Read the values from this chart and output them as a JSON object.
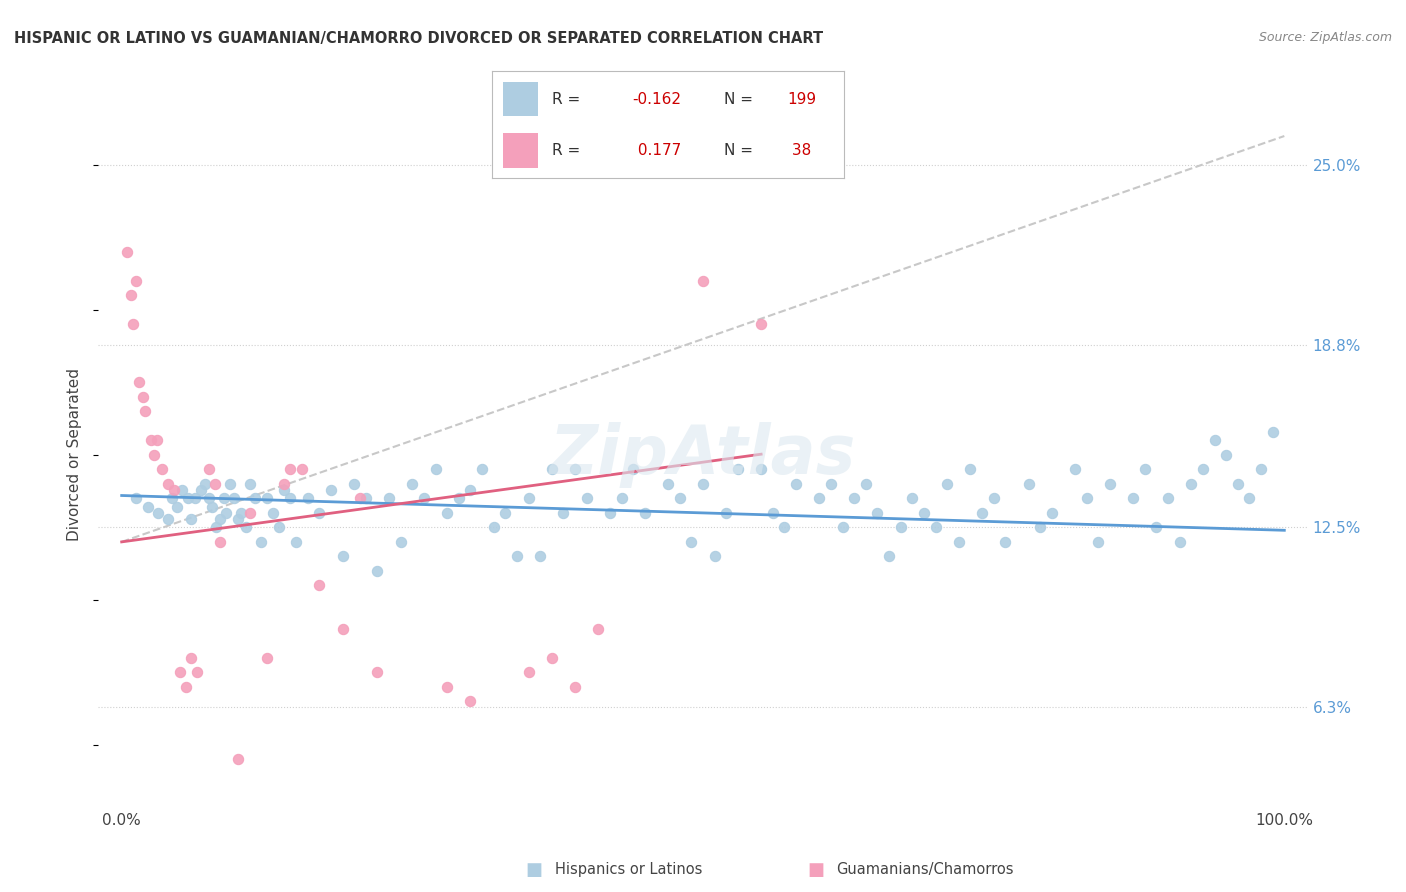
{
  "title": "HISPANIC OR LATINO VS GUAMANIAN/CHAMORRO DIVORCED OR SEPARATED CORRELATION CHART",
  "source": "Source: ZipAtlas.com",
  "ylabel": "Divorced or Separated",
  "xlim": [
    -2.0,
    102.0
  ],
  "ylim": [
    3.0,
    27.0
  ],
  "yticks": [
    6.3,
    12.5,
    18.8,
    25.0
  ],
  "ytick_labels": [
    "6.3%",
    "12.5%",
    "18.8%",
    "25.0%"
  ],
  "xticks": [
    0.0,
    100.0
  ],
  "xtick_labels": [
    "0.0%",
    "100.0%"
  ],
  "blue_color": "#aecde1",
  "pink_color": "#f4a0bb",
  "blue_line_color": "#5b9bd5",
  "pink_line_color": "#e06080",
  "dashed_line_color": "#c8c8c8",
  "watermark": "ZipAtlas",
  "blue_scatter_x": [
    1.2,
    2.3,
    3.1,
    4.0,
    4.3,
    4.8,
    5.2,
    5.7,
    6.0,
    6.3,
    6.8,
    7.2,
    7.5,
    7.8,
    8.1,
    8.5,
    8.8,
    9.0,
    9.3,
    9.7,
    10.0,
    10.3,
    10.7,
    11.0,
    11.5,
    12.0,
    12.5,
    13.0,
    13.5,
    14.0,
    14.5,
    15.0,
    16.0,
    17.0,
    18.0,
    19.0,
    20.0,
    21.0,
    22.0,
    23.0,
    24.0,
    25.0,
    26.0,
    27.0,
    28.0,
    29.0,
    30.0,
    31.0,
    32.0,
    33.0,
    34.0,
    35.0,
    36.0,
    37.0,
    38.0,
    39.0,
    40.0,
    42.0,
    43.0,
    44.0,
    45.0,
    47.0,
    48.0,
    49.0,
    50.0,
    51.0,
    52.0,
    53.0,
    55.0,
    56.0,
    57.0,
    58.0,
    60.0,
    61.0,
    62.0,
    63.0,
    64.0,
    65.0,
    66.0,
    67.0,
    68.0,
    69.0,
    70.0,
    71.0,
    72.0,
    73.0,
    74.0,
    75.0,
    76.0,
    78.0,
    79.0,
    80.0,
    82.0,
    83.0,
    84.0,
    85.0,
    87.0,
    88.0,
    89.0,
    90.0,
    91.0,
    92.0,
    93.0,
    94.0,
    95.0,
    96.0,
    97.0,
    98.0,
    99.0
  ],
  "blue_scatter_y": [
    13.5,
    13.2,
    13.0,
    12.8,
    13.5,
    13.2,
    13.8,
    13.5,
    12.8,
    13.5,
    13.8,
    14.0,
    13.5,
    13.2,
    12.5,
    12.8,
    13.5,
    13.0,
    14.0,
    13.5,
    12.8,
    13.0,
    12.5,
    14.0,
    13.5,
    12.0,
    13.5,
    13.0,
    12.5,
    13.8,
    13.5,
    12.0,
    13.5,
    13.0,
    13.8,
    11.5,
    14.0,
    13.5,
    11.0,
    13.5,
    12.0,
    14.0,
    13.5,
    14.5,
    13.0,
    13.5,
    13.8,
    14.5,
    12.5,
    13.0,
    11.5,
    13.5,
    11.5,
    14.5,
    13.0,
    14.5,
    13.5,
    13.0,
    13.5,
    14.5,
    13.0,
    14.0,
    13.5,
    12.0,
    14.0,
    11.5,
    13.0,
    14.5,
    14.5,
    13.0,
    12.5,
    14.0,
    13.5,
    14.0,
    12.5,
    13.5,
    14.0,
    13.0,
    11.5,
    12.5,
    13.5,
    13.0,
    12.5,
    14.0,
    12.0,
    14.5,
    13.0,
    13.5,
    12.0,
    14.0,
    12.5,
    13.0,
    14.5,
    13.5,
    12.0,
    14.0,
    13.5,
    14.5,
    12.5,
    13.5,
    12.0,
    14.0,
    14.5,
    15.5,
    15.0,
    14.0,
    13.5,
    14.5,
    15.8
  ],
  "pink_scatter_x": [
    0.5,
    0.8,
    1.0,
    1.2,
    1.5,
    1.8,
    2.0,
    2.5,
    2.8,
    3.0,
    3.5,
    4.0,
    4.5,
    5.0,
    5.5,
    6.0,
    6.5,
    7.5,
    8.0,
    8.5,
    10.0,
    11.0,
    12.5,
    14.0,
    14.5,
    15.5,
    17.0,
    19.0,
    20.5,
    22.0,
    28.0,
    30.0,
    35.0,
    37.0,
    39.0,
    41.0,
    50.0,
    55.0
  ],
  "pink_scatter_y": [
    22.0,
    20.5,
    19.5,
    21.0,
    17.5,
    17.0,
    16.5,
    15.5,
    15.0,
    15.5,
    14.5,
    14.0,
    13.8,
    7.5,
    7.0,
    8.0,
    7.5,
    14.5,
    14.0,
    12.0,
    4.5,
    13.0,
    8.0,
    14.0,
    14.5,
    14.5,
    10.5,
    9.0,
    13.5,
    7.5,
    7.0,
    6.5,
    7.5,
    8.0,
    7.0,
    9.0,
    21.0,
    19.5
  ],
  "blue_trend_x": [
    0,
    100
  ],
  "blue_trend_y": [
    13.6,
    12.4
  ],
  "pink_trend_x": [
    0,
    100
  ],
  "pink_trend_y": [
    12.0,
    17.5
  ],
  "dashed_trend_x": [
    0,
    100
  ],
  "dashed_trend_y": [
    12.0,
    26.0
  ]
}
